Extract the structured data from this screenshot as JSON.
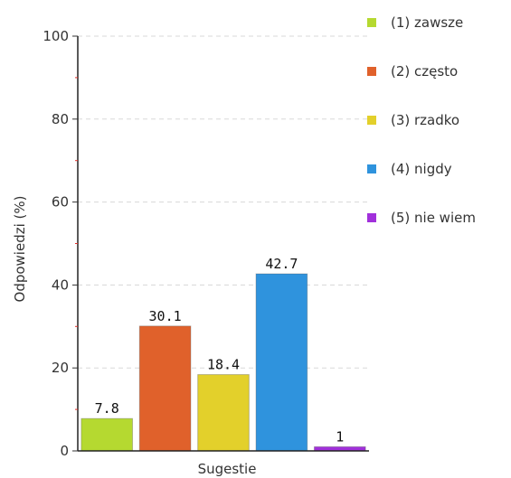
{
  "chart_data": {
    "type": "bar",
    "xlabel": "Sugestie",
    "ylabel": "Odpowiedzi (%)",
    "ylim": [
      0,
      100
    ],
    "yticks": [
      0,
      20,
      40,
      60,
      80,
      100
    ],
    "grid": true,
    "legend_position": "right",
    "series": [
      {
        "name": "(1) zawsze",
        "value": 7.8,
        "value_label": "7.8",
        "color": "#b5d930"
      },
      {
        "name": "(2) często",
        "value": 30.1,
        "value_label": "30.1",
        "color": "#e0612b"
      },
      {
        "name": "(3) rzadko",
        "value": 18.4,
        "value_label": "18.4",
        "color": "#e3d02b"
      },
      {
        "name": "(4) nigdy",
        "value": 42.7,
        "value_label": "42.7",
        "color": "#2f93dd"
      },
      {
        "name": "(5) nie wiem",
        "value": 1,
        "value_label": "1",
        "color": "#a130db"
      }
    ]
  }
}
